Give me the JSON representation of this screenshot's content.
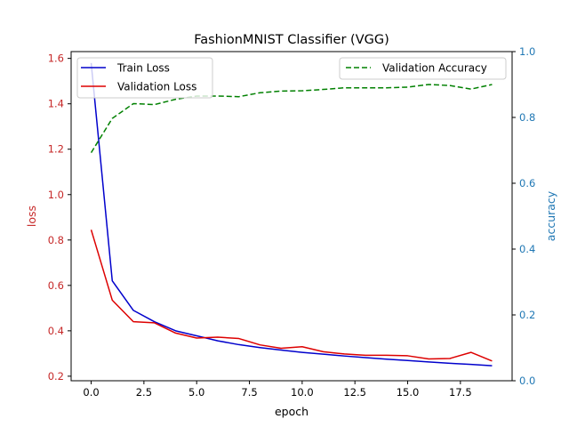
{
  "chart_data": {
    "type": "line",
    "title": "FashionMNIST Classifier (VGG)",
    "xlabel": "epoch",
    "ylabel_left": "loss",
    "ylabel_right": "accuracy",
    "xlim": [
      -0.95,
      19.95
    ],
    "ylim_left": [
      0.18,
      1.63
    ],
    "ylim_right": [
      0.0,
      1.0
    ],
    "x_ticks": [
      0.0,
      2.5,
      5.0,
      7.5,
      10.0,
      12.5,
      15.0,
      17.5
    ],
    "x_tick_labels": [
      "0.0",
      "2.5",
      "5.0",
      "7.5",
      "10.0",
      "12.5",
      "15.0",
      "17.5"
    ],
    "left_ticks": [
      0.2,
      0.4,
      0.6,
      0.8,
      1.0,
      1.2,
      1.4,
      1.6
    ],
    "left_tick_labels": [
      "0.2",
      "0.4",
      "0.6",
      "0.8",
      "1.0",
      "1.2",
      "1.4",
      "1.6"
    ],
    "right_ticks": [
      0.0,
      0.2,
      0.4,
      0.6,
      0.8,
      1.0
    ],
    "right_tick_labels": [
      "0.0",
      "0.2",
      "0.4",
      "0.6",
      "0.8",
      "1.0"
    ],
    "grid": false,
    "x": [
      0,
      1,
      2,
      3,
      4,
      5,
      6,
      7,
      8,
      9,
      10,
      11,
      12,
      13,
      14,
      15,
      16,
      17,
      18,
      19
    ],
    "series": [
      {
        "name": "Train Loss",
        "axis": "left",
        "color": "#0000cc",
        "style": "solid",
        "values": [
          1.58,
          0.62,
          0.49,
          0.44,
          0.4,
          0.378,
          0.356,
          0.339,
          0.326,
          0.315,
          0.305,
          0.297,
          0.289,
          0.282,
          0.275,
          0.269,
          0.263,
          0.257,
          0.252,
          0.246
        ]
      },
      {
        "name": "Validation Loss",
        "axis": "left",
        "color": "#dd0000",
        "style": "solid",
        "values": [
          0.845,
          0.535,
          0.44,
          0.435,
          0.39,
          0.368,
          0.372,
          0.366,
          0.338,
          0.323,
          0.33,
          0.308,
          0.298,
          0.292,
          0.292,
          0.29,
          0.276,
          0.278,
          0.305,
          0.267
        ]
      },
      {
        "name": "Validation Accuracy",
        "axis": "right",
        "color": "#008000",
        "style": "dashed",
        "values": [
          0.693,
          0.797,
          0.842,
          0.839,
          0.855,
          0.865,
          0.865,
          0.863,
          0.875,
          0.88,
          0.881,
          0.885,
          0.89,
          0.89,
          0.89,
          0.892,
          0.9,
          0.897,
          0.886,
          0.9
        ]
      }
    ],
    "legend_left": {
      "placement": "top-left",
      "entries": [
        "Train Loss",
        "Validation Loss"
      ]
    },
    "legend_right": {
      "placement": "top-right",
      "entries": [
        "Validation Accuracy"
      ]
    }
  },
  "colors": {
    "left_axis": "#c62828",
    "right_axis": "#1f77b4",
    "text": "#000000",
    "frame": "#000000"
  }
}
